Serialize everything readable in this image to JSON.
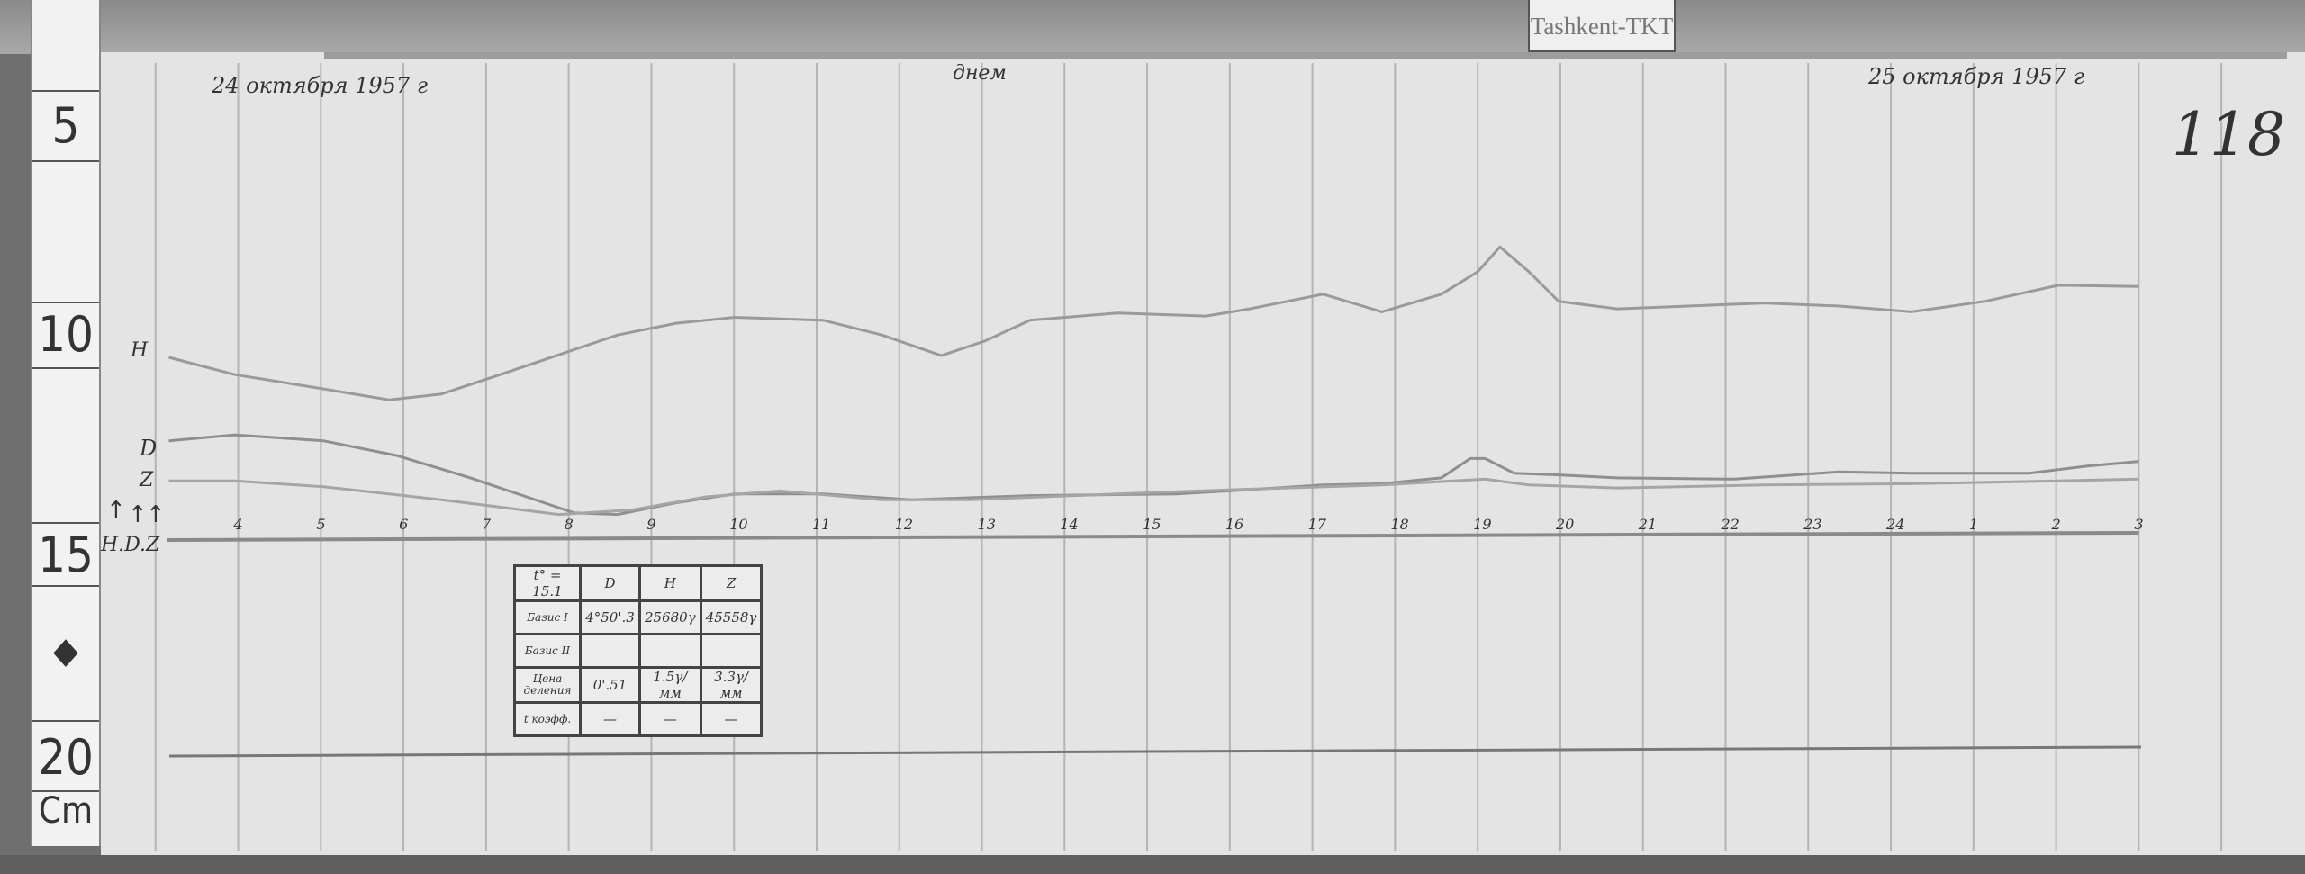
{
  "station_label": "Tashkent-TKT",
  "ruler": {
    "unit": "Cm",
    "marks": [
      "5",
      "10",
      "15",
      "20"
    ]
  },
  "sheet": {
    "date_start": "24 октября 1957 г",
    "date_end": "25 октября 1957 г",
    "center_note": "днем",
    "page_number": "118",
    "baseline_label": "H.D.Z"
  },
  "calibration_table": {
    "header": [
      "t° = 15.1",
      "D",
      "H",
      "Z"
    ],
    "rows": [
      {
        "label": "Базис I",
        "values": [
          "4°50'.3",
          "25680γ",
          "45558γ"
        ]
      },
      {
        "label": "Базис II",
        "values": [
          "",
          "",
          ""
        ]
      },
      {
        "label": "Цена деления",
        "values": [
          "0'.51",
          "1.5γ/мм",
          "3.3γ/мм"
        ]
      },
      {
        "label": "t коэфф.",
        "values": [
          "—",
          "—",
          "—"
        ]
      }
    ]
  },
  "chart_data": {
    "type": "line",
    "title": "",
    "xlabel": "",
    "ylabel": "",
    "x_unit": "hours (24→25 Oct 1957)",
    "y_unit": "cm",
    "x_tick_labels": [
      "4",
      "5",
      "6",
      "7",
      "8",
      "9",
      "10",
      "11",
      "12",
      "13",
      "14",
      "15",
      "16",
      "17",
      "18",
      "19",
      "20",
      "21",
      "22",
      "23",
      "24",
      "1",
      "2",
      "3"
    ],
    "xlim": [
      3,
      27
    ],
    "ylim": [
      5,
      20
    ],
    "grid": "vertical hourly lines",
    "baseline_cm": 14.66,
    "series": [
      {
        "name": "H",
        "color": "#9a9a9a",
        "x": [
          3.16,
          3.96,
          5.07,
          5.83,
          6.46,
          7.17,
          8.06,
          8.59,
          9.3,
          10.01,
          11.08,
          11.79,
          12.51,
          13.04,
          13.58,
          14.64,
          15.71,
          16.24,
          17.13,
          17.84,
          18.56,
          19.0,
          19.27,
          19.62,
          19.98,
          20.69,
          21.58,
          22.47,
          23.36,
          24.25,
          25.14,
          26.03,
          27.0
        ],
        "y": [
          10.41,
          10.82,
          11.17,
          11.42,
          11.28,
          10.82,
          10.23,
          9.88,
          9.6,
          9.46,
          9.53,
          9.88,
          10.37,
          10.02,
          9.53,
          9.36,
          9.43,
          9.26,
          8.91,
          9.33,
          8.91,
          8.38,
          7.79,
          8.38,
          9.08,
          9.26,
          9.19,
          9.12,
          9.19,
          9.33,
          9.08,
          8.7,
          8.73
        ]
      },
      {
        "name": "D",
        "color": "#8f8f8f",
        "x": [
          3.16,
          3.96,
          5.03,
          5.92,
          6.81,
          7.7,
          8.06,
          8.59,
          9.3,
          10.01,
          11.08,
          12.15,
          13.58,
          15.35,
          16.24,
          17.13,
          17.84,
          18.56,
          18.91,
          19.09,
          19.44,
          19.98,
          20.69,
          22.11,
          23.36,
          24.25,
          25.67,
          26.38,
          27.0
        ],
        "y": [
          12.39,
          12.25,
          12.39,
          12.74,
          13.27,
          13.86,
          14.1,
          14.14,
          13.86,
          13.65,
          13.65,
          13.79,
          13.69,
          13.65,
          13.55,
          13.44,
          13.41,
          13.27,
          12.81,
          12.81,
          13.16,
          13.2,
          13.27,
          13.3,
          13.13,
          13.16,
          13.16,
          12.99,
          12.88
        ]
      },
      {
        "name": "Z",
        "color": "#a5a5a5",
        "x": [
          3.16,
          3.96,
          5.03,
          6.46,
          7.88,
          8.77,
          9.66,
          10.55,
          11.79,
          12.86,
          14.64,
          16.06,
          17.84,
          19.09,
          19.62,
          20.69,
          22.47,
          24.25,
          26.03,
          27.0
        ],
        "y": [
          13.34,
          13.34,
          13.48,
          13.79,
          14.14,
          14.03,
          13.72,
          13.58,
          13.79,
          13.79,
          13.65,
          13.55,
          13.44,
          13.3,
          13.44,
          13.51,
          13.44,
          13.41,
          13.34,
          13.3
        ]
      }
    ]
  }
}
